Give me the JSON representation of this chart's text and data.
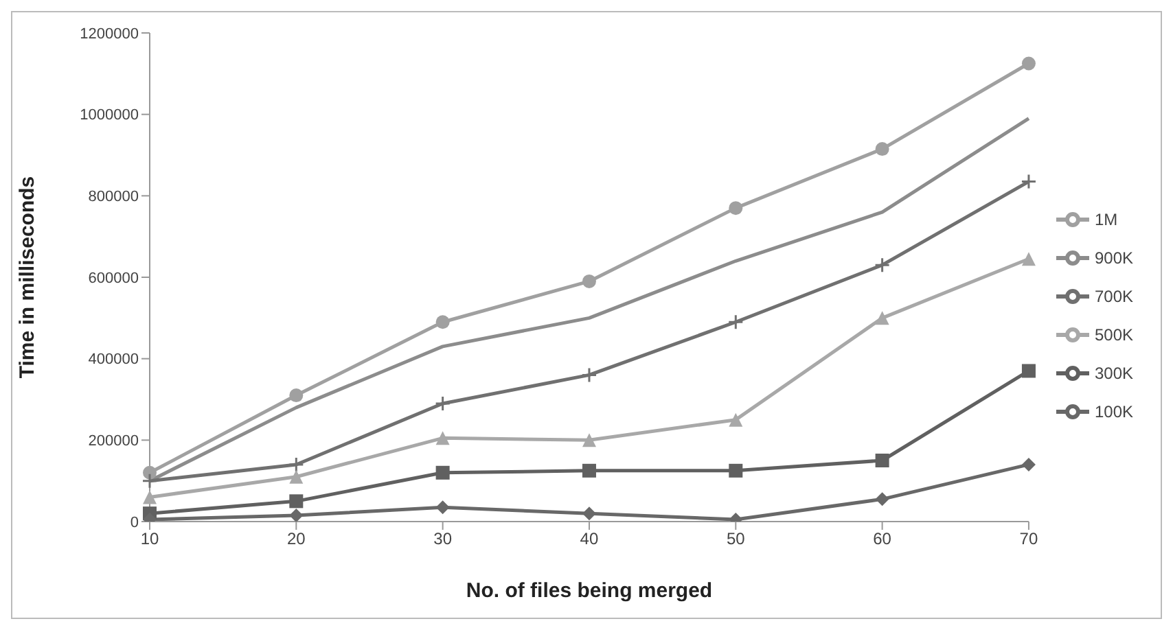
{
  "chart_data": {
    "type": "line",
    "xlabel": "No. of files being merged",
    "ylabel": "Time in  milliseconds",
    "categories": [
      "10",
      "20",
      "30",
      "40",
      "50",
      "60",
      "70"
    ],
    "ylim": [
      0,
      1200000
    ],
    "yticks": [
      0,
      200000,
      400000,
      600000,
      800000,
      1000000,
      1200000
    ],
    "grid": false,
    "legend": "right",
    "series": [
      {
        "name": "1M",
        "color": "#a0a0a0",
        "marker": "circle",
        "values": [
          120000,
          310000,
          490000,
          590000,
          770000,
          915000,
          1125000
        ]
      },
      {
        "name": "900K",
        "color": "#8c8c8c",
        "marker": "none",
        "values": [
          100000,
          280000,
          430000,
          500000,
          640000,
          760000,
          990000
        ]
      },
      {
        "name": "700K",
        "color": "#707070",
        "marker": "cross",
        "values": [
          100000,
          140000,
          290000,
          360000,
          490000,
          630000,
          835000
        ]
      },
      {
        "name": "500K",
        "color": "#a8a8a8",
        "marker": "triangle",
        "values": [
          60000,
          110000,
          205000,
          200000,
          250000,
          500000,
          645000
        ]
      },
      {
        "name": "300K",
        "color": "#606060",
        "marker": "square",
        "values": [
          20000,
          50000,
          120000,
          125000,
          125000,
          150000,
          370000
        ]
      },
      {
        "name": "100K",
        "color": "#686868",
        "marker": "diamond",
        "values": [
          5000,
          15000,
          35000,
          20000,
          5000,
          55000,
          140000
        ]
      }
    ]
  }
}
